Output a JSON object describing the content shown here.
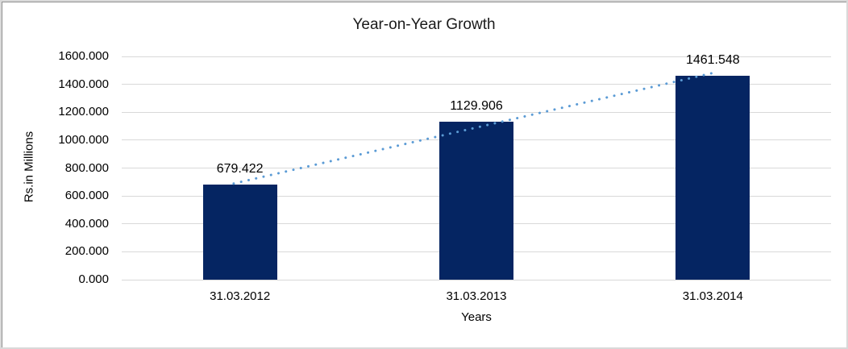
{
  "chart_data": {
    "type": "bar",
    "title": "Year-on-Year Growth",
    "xlabel": "Years",
    "ylabel": "Rs.in Millions",
    "categories": [
      "31.03.2012",
      "31.03.2013",
      "31.03.2014"
    ],
    "values": [
      679.422,
      1129.906,
      1461.548
    ],
    "data_labels": [
      "679.422",
      "1129.906",
      "1461.548"
    ],
    "ytick_labels": [
      "0.000",
      "200.000",
      "400.000",
      "600.000",
      "800.000",
      "1000.000",
      "1200.000",
      "1400.000",
      "1600.000"
    ],
    "ylim": [
      0,
      1600
    ],
    "grid": "horizontal",
    "legend_position": "none",
    "trendline": {
      "type": "linear",
      "style": "dotted"
    },
    "colors": {
      "bar": "#052562",
      "trendline": "#5b9bd5",
      "gridline": "#d9d9d9",
      "text": "#000000",
      "frame_border": "#d9d9d9"
    }
  }
}
